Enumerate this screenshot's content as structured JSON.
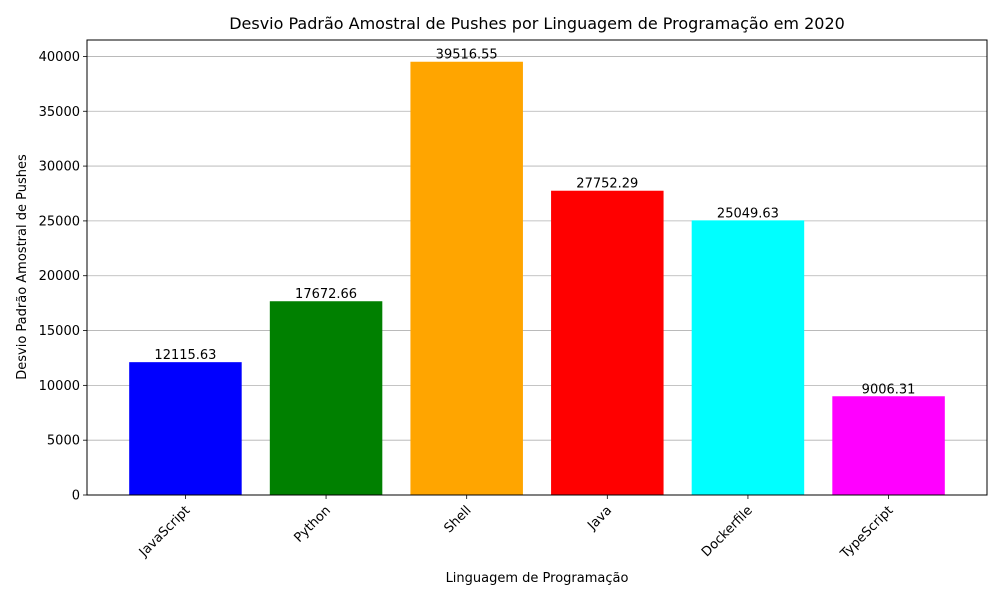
{
  "chart_data": {
    "type": "bar",
    "title": "Desvio Padrão Amostral de Pushes por Linguagem de Programação em 2020",
    "xlabel": "Linguagem de Programação",
    "ylabel": "Desvio Padrão Amostral de Pushes",
    "categories": [
      "JavaScript",
      "Python",
      "Shell",
      "Java",
      "Dockerfile",
      "TypeScript"
    ],
    "values": [
      12115.63,
      17672.66,
      39516.55,
      27752.29,
      25049.63,
      9006.31
    ],
    "value_labels": [
      "12115.63",
      "17672.66",
      "39516.55",
      "27752.29",
      "25049.63",
      "9006.31"
    ],
    "colors": [
      "#0000ff",
      "#008000",
      "#ffa500",
      "#ff0000",
      "#00ffff",
      "#ff00ff"
    ],
    "ylim": [
      0,
      41500
    ],
    "yticks": [
      0,
      5000,
      10000,
      15000,
      20000,
      25000,
      30000,
      35000,
      40000
    ],
    "ytick_labels": [
      "0",
      "5000",
      "10000",
      "15000",
      "20000",
      "25000",
      "30000",
      "35000",
      "40000"
    ],
    "grid": "y-axis",
    "x_tick_rotation_deg": 45
  }
}
